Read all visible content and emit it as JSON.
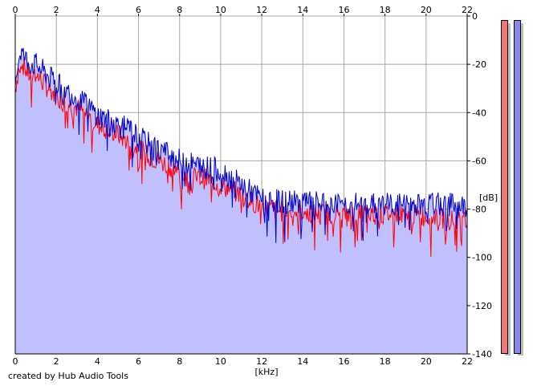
{
  "chart_data": {
    "type": "area",
    "title": "",
    "xlabel": "[kHz]",
    "ylabel": "[dB]",
    "xlim": [
      0,
      22
    ],
    "ylim": [
      -140,
      0
    ],
    "x_ticks": [
      "0",
      "2",
      "4",
      "6",
      "8",
      "10",
      "12",
      "14",
      "16",
      "18",
      "20",
      "22"
    ],
    "y_ticks": [
      "0",
      "-20",
      "-40",
      "-60",
      "-80",
      "-100",
      "-120",
      "-140"
    ],
    "grid": true,
    "series": [
      {
        "color": "#ff0000",
        "x": [
          0,
          0.25,
          0.5,
          0.75,
          1,
          1.5,
          2,
          2.5,
          3,
          3.5,
          4,
          4.5,
          5,
          5.5,
          6,
          6.5,
          7,
          7.5,
          8,
          8.5,
          9,
          9.5,
          10,
          10.5,
          11,
          11.5,
          12,
          13,
          14,
          15,
          16,
          17,
          18,
          19,
          20,
          21,
          22
        ],
        "values": [
          -30,
          -18,
          -22,
          -25,
          -24,
          -29,
          -33,
          -36,
          -38,
          -41,
          -45,
          -47,
          -49,
          -52,
          -55,
          -58,
          -60,
          -62,
          -65,
          -67,
          -67,
          -68,
          -70,
          -72,
          -74,
          -77,
          -79,
          -81,
          -81,
          -82,
          -82,
          -82,
          -82,
          -82,
          -83,
          -84,
          -86
        ]
      },
      {
        "color": "#0000cc",
        "x": [
          0,
          0.25,
          0.5,
          0.75,
          1,
          1.5,
          2,
          2.5,
          3,
          3.5,
          4,
          4.5,
          5,
          5.5,
          6,
          6.5,
          7,
          7.5,
          8,
          8.5,
          9,
          9.5,
          10,
          10.5,
          11,
          11.5,
          12,
          13,
          14,
          15,
          16,
          17,
          18,
          19,
          20,
          21,
          22
        ],
        "values": [
          -26,
          -14,
          -18,
          -20,
          -20,
          -24,
          -28,
          -31,
          -34,
          -37,
          -41,
          -43,
          -45,
          -47,
          -50,
          -53,
          -55,
          -57,
          -60,
          -61,
          -62,
          -63,
          -64,
          -67,
          -70,
          -73,
          -76,
          -77,
          -77,
          -78,
          -78,
          -78,
          -78,
          -78,
          -78,
          -78,
          -79
        ]
      }
    ]
  },
  "credit": "created by Hub Audio Tools",
  "colors": {
    "fill": "#c0c0ff",
    "meter_left": "#ee7777",
    "meter_right": "#8888ee"
  }
}
